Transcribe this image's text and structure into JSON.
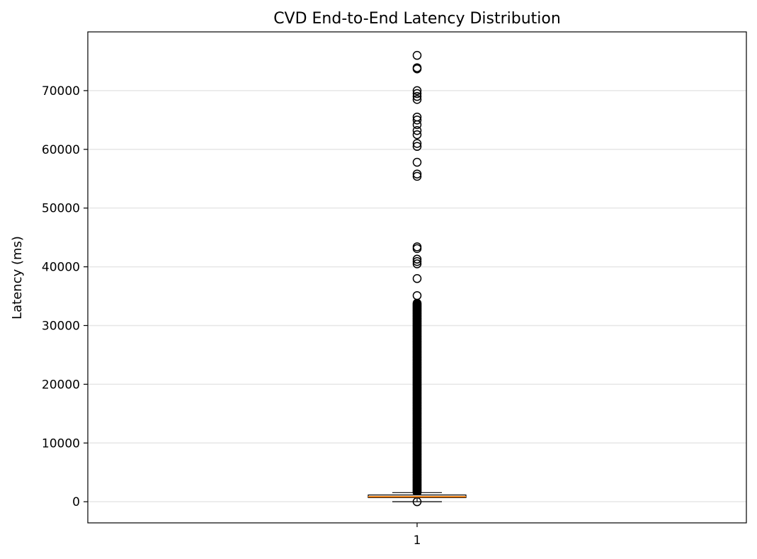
{
  "chart_data": {
    "type": "box",
    "title": "CVD End-to-End Latency Distribution",
    "xlabel": "",
    "ylabel": "Latency (ms)",
    "ylim": [
      -3600,
      80000
    ],
    "yticks": [
      0,
      10000,
      20000,
      30000,
      40000,
      50000,
      60000,
      70000
    ],
    "ytick_labels": [
      "0",
      "10000",
      "20000",
      "30000",
      "40000",
      "50000",
      "60000",
      "70000"
    ],
    "categories": [
      "1"
    ],
    "grid": "horizontal",
    "legend": "none",
    "series": [
      {
        "box": {
          "whisker_low": 0,
          "q1": 700,
          "median": 850,
          "q3": 1150,
          "whisker_high": 1550
        },
        "outlier_dense_range": [
          1600,
          33800
        ],
        "outliers": [
          0,
          76000,
          73900,
          73700,
          70000,
          69500,
          69000,
          68500,
          65500,
          65000,
          64200,
          63200,
          62500,
          61000,
          60500,
          57800,
          55800,
          55400,
          43400,
          43100,
          41300,
          40900,
          40500,
          38000,
          35100
        ]
      }
    ],
    "colors": {
      "median": "#ff7f0e",
      "box_edge": "#000000",
      "grid": "#e6e6e6"
    }
  }
}
